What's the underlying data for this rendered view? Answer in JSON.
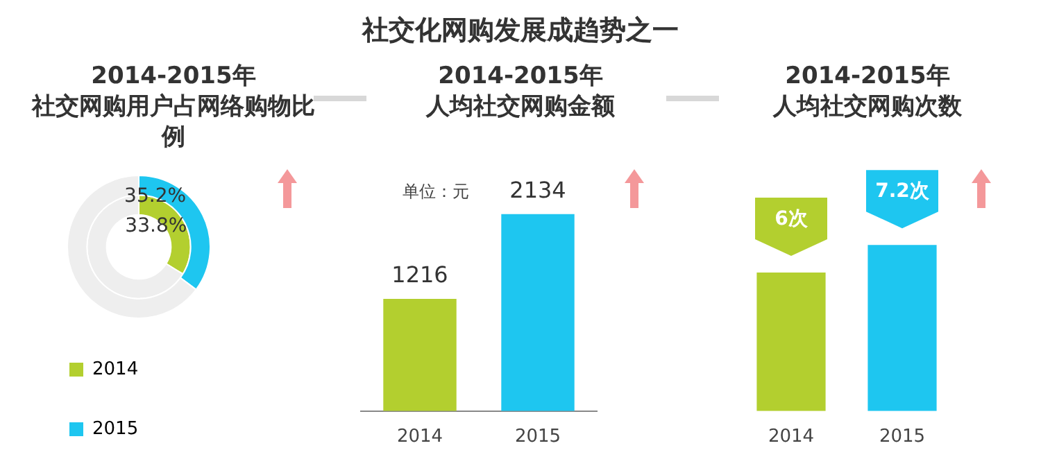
{
  "chart_data": [
    {
      "type": "other",
      "title": "社交化网购发展成趋势之一"
    },
    {
      "type": "donut",
      "title": "2014-2015年社交网购用户占网络购物比例",
      "categories": [
        null,
        null
      ],
      "legend": "bottom left",
      "series": [
        {
          "name": "2014",
          "values": [
            33.8,
            66.2
          ],
          "colors": [
            "#b3cf2f",
            "#eeeeee"
          ],
          "value_labels": [
            "33.8%",
            null
          ]
        },
        {
          "name": "2015",
          "values": [
            35.2,
            64.8
          ],
          "colors": [
            "#1ec6f0",
            "#eeeeee"
          ],
          "value_labels": [
            "35.2%",
            null
          ]
        }
      ]
    },
    {
      "type": "bar",
      "title": "2014-2015年人均社交网购金额",
      "categories": [
        "2014",
        "2015"
      ],
      "values": [
        1216,
        2134
      ],
      "colors": [
        "#b3cf2f",
        "#1ec6f0"
      ],
      "data_labels": true,
      "annotations": [
        "单位：元"
      ]
    },
    {
      "type": "bar",
      "title": "2014-2015年人均社交网购次数",
      "categories": [
        "2014",
        "2015"
      ],
      "values": [
        6,
        7.2
      ],
      "colors": [
        "#b3cf2f",
        "#1ec6f0"
      ],
      "value_labels": [
        "6次",
        "7.2次"
      ]
    }
  ]
}
